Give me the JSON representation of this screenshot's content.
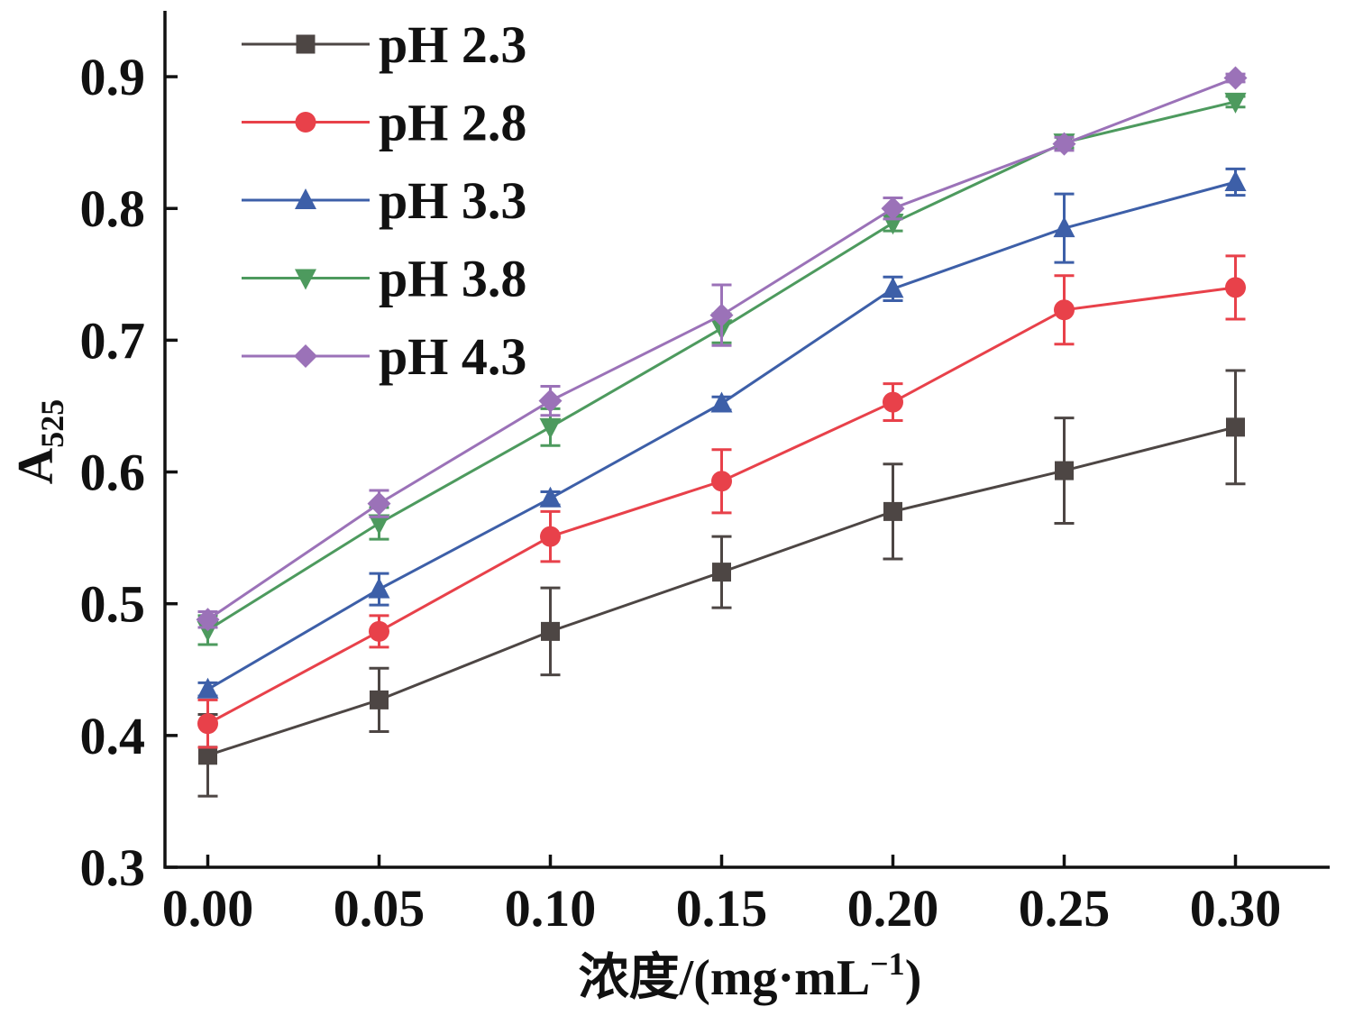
{
  "chart_data": {
    "type": "line",
    "xlabel_main": "浓度/(mg·mL",
    "xlabel_sup": "−1",
    "xlabel_close": ")",
    "ylabel_main": "A",
    "ylabel_sub": "525",
    "x": [
      0.0,
      0.05,
      0.1,
      0.15,
      0.2,
      0.25,
      0.3
    ],
    "x_tick_labels": [
      "0.00",
      "0.05",
      "0.10",
      "0.15",
      "0.20",
      "0.25",
      "0.30"
    ],
    "xlim": [
      -0.0125,
      0.3275
    ],
    "ylim": [
      0.3,
      0.95
    ],
    "y_ticks": [
      0.3,
      0.4,
      0.5,
      0.6,
      0.7,
      0.8,
      0.9
    ],
    "y_tick_labels": [
      "0.3",
      "0.4",
      "0.5",
      "0.6",
      "0.7",
      "0.8",
      "0.9"
    ],
    "grid": false,
    "legend_position": "top-left",
    "series": [
      {
        "name": "pH 2.3",
        "color": "#4d4644",
        "marker": "square",
        "values": [
          0.385,
          0.427,
          0.479,
          0.524,
          0.57,
          0.601,
          0.634
        ],
        "errors": [
          0.031,
          0.024,
          0.033,
          0.027,
          0.036,
          0.04,
          0.043
        ]
      },
      {
        "name": "pH 2.8",
        "color": "#e8414a",
        "marker": "circle",
        "values": [
          0.409,
          0.479,
          0.551,
          0.593,
          0.653,
          0.723,
          0.74
        ],
        "errors": [
          0.018,
          0.012,
          0.019,
          0.024,
          0.014,
          0.026,
          0.024
        ]
      },
      {
        "name": "pH 3.3",
        "color": "#3d5fa8",
        "marker": "triangle-up",
        "values": [
          0.435,
          0.511,
          0.58,
          0.652,
          0.739,
          0.785,
          0.82
        ],
        "errors": [
          0.005,
          0.012,
          0.005,
          0.005,
          0.009,
          0.026,
          0.01
        ]
      },
      {
        "name": "pH 3.8",
        "color": "#4d9a5e",
        "marker": "triangle-down",
        "values": [
          0.48,
          0.561,
          0.634,
          0.709,
          0.789,
          0.85,
          0.881
        ],
        "errors": [
          0.011,
          0.012,
          0.014,
          0.011,
          0.006,
          0.004,
          0.004
        ]
      },
      {
        "name": "pH 4.3",
        "color": "#9b72b8",
        "marker": "diamond",
        "values": [
          0.488,
          0.576,
          0.654,
          0.719,
          0.8,
          0.849,
          0.899
        ],
        "errors": [
          0.006,
          0.01,
          0.011,
          0.023,
          0.008,
          0.005,
          0.003
        ]
      }
    ]
  }
}
